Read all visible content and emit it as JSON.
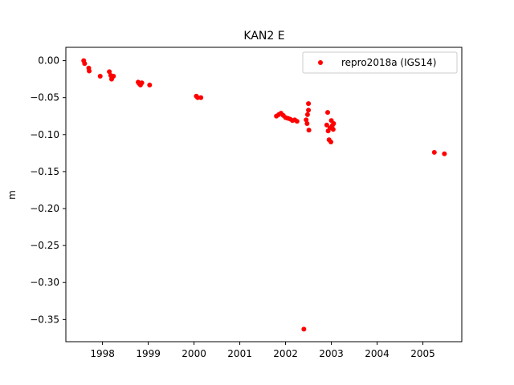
{
  "chart_data": {
    "type": "scatter",
    "title": "KAN2 E",
    "xlabel": "",
    "ylabel": "m",
    "xlim": [
      1997.2,
      2005.85
    ],
    "ylim": [
      -0.38,
      0.018
    ],
    "x_ticks": [
      1998,
      1999,
      2000,
      2001,
      2002,
      2003,
      2004,
      2005
    ],
    "y_ticks": [
      0.0,
      -0.05,
      -0.1,
      -0.15,
      -0.2,
      -0.25,
      -0.3,
      -0.35
    ],
    "y_tick_labels": [
      "0.00",
      "−0.05",
      "−0.10",
      "−0.15",
      "−0.20",
      "−0.25",
      "−0.30",
      "−0.35"
    ],
    "grid": false,
    "legend_position": "top-right",
    "series": [
      {
        "name": "repro2018a (IGS14)",
        "color": "#ff0000",
        "marker": "circle",
        "points": [
          [
            1997.59,
            0.0
          ],
          [
            1997.61,
            -0.004
          ],
          [
            1997.7,
            -0.01
          ],
          [
            1997.71,
            -0.014
          ],
          [
            1997.95,
            -0.021
          ],
          [
            1998.15,
            -0.015
          ],
          [
            1998.18,
            -0.02
          ],
          [
            1998.21,
            -0.023
          ],
          [
            1998.24,
            -0.021
          ],
          [
            1998.2,
            -0.025
          ],
          [
            1998.78,
            -0.029
          ],
          [
            1998.8,
            -0.031
          ],
          [
            1998.83,
            -0.033
          ],
          [
            1998.86,
            -0.03
          ],
          [
            1999.03,
            -0.033
          ],
          [
            2000.05,
            -0.048
          ],
          [
            2000.08,
            -0.05
          ],
          [
            2000.15,
            -0.05
          ],
          [
            2001.8,
            -0.075
          ],
          [
            2001.85,
            -0.073
          ],
          [
            2001.9,
            -0.071
          ],
          [
            2001.95,
            -0.074
          ],
          [
            2002.0,
            -0.077
          ],
          [
            2002.05,
            -0.078
          ],
          [
            2002.1,
            -0.079
          ],
          [
            2002.15,
            -0.081
          ],
          [
            2002.2,
            -0.08
          ],
          [
            2002.25,
            -0.082
          ],
          [
            2002.45,
            -0.08
          ],
          [
            2002.47,
            -0.085
          ],
          [
            2002.48,
            -0.073
          ],
          [
            2002.5,
            -0.067
          ],
          [
            2002.5,
            -0.058
          ],
          [
            2002.51,
            -0.094
          ],
          [
            2002.4,
            -0.363
          ],
          [
            2002.9,
            -0.087
          ],
          [
            2002.92,
            -0.07
          ],
          [
            2002.93,
            -0.095
          ],
          [
            2002.95,
            -0.107
          ],
          [
            2002.97,
            -0.091
          ],
          [
            2002.99,
            -0.11
          ],
          [
            2003.0,
            -0.081
          ],
          [
            2003.02,
            -0.088
          ],
          [
            2003.04,
            -0.093
          ],
          [
            2003.05,
            -0.085
          ],
          [
            2005.25,
            -0.124
          ],
          [
            2005.47,
            -0.126
          ]
        ]
      }
    ]
  }
}
